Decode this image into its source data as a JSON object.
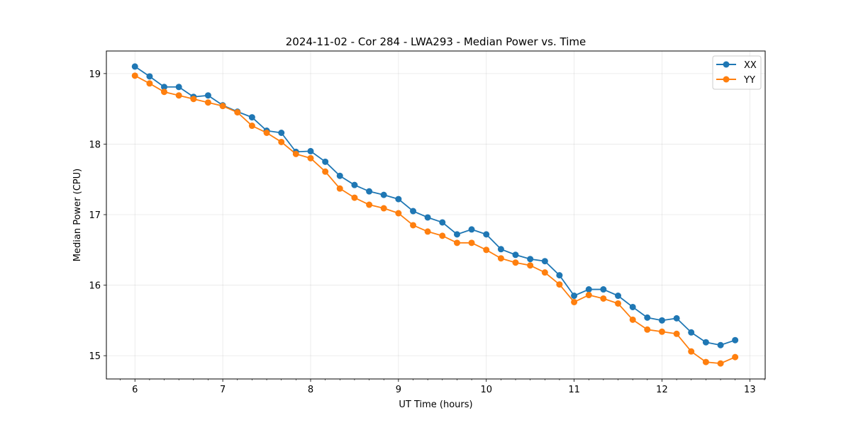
{
  "chart_data": {
    "type": "line",
    "title": "2024-11-02 - Cor 284 - LWA293 - Median Power vs. Time",
    "xlabel": "UT Time (hours)",
    "ylabel": "Median Power (CPU)",
    "xlim": [
      5.675,
      13.175
    ],
    "ylim": [
      14.67,
      19.32
    ],
    "x_ticks": [
      6,
      7,
      8,
      9,
      10,
      11,
      12,
      13
    ],
    "y_ticks": [
      15,
      16,
      17,
      18,
      19
    ],
    "grid": true,
    "legend_position": "top-right",
    "x": [
      6.0,
      6.167,
      6.333,
      6.5,
      6.667,
      6.833,
      7.0,
      7.167,
      7.333,
      7.5,
      7.667,
      7.833,
      8.0,
      8.167,
      8.333,
      8.5,
      8.667,
      8.833,
      9.0,
      9.167,
      9.333,
      9.5,
      9.667,
      9.833,
      10.0,
      10.167,
      10.333,
      10.5,
      10.667,
      10.833,
      11.0,
      11.167,
      11.333,
      11.5,
      11.667,
      11.833,
      12.0,
      12.167,
      12.333,
      12.5,
      12.667,
      12.833
    ],
    "series": [
      {
        "name": "XX",
        "color": "#1f77b4",
        "values": [
          19.1,
          18.96,
          18.81,
          18.81,
          18.67,
          18.69,
          18.55,
          18.46,
          18.38,
          18.19,
          18.16,
          17.89,
          17.9,
          17.75,
          17.55,
          17.42,
          17.33,
          17.28,
          17.22,
          17.05,
          16.96,
          16.89,
          16.72,
          16.79,
          16.72,
          16.51,
          16.43,
          16.37,
          16.34,
          16.14,
          15.85,
          15.94,
          15.94,
          15.85,
          15.69,
          15.54,
          15.5,
          15.53,
          15.33,
          15.19,
          15.15,
          15.22
        ]
      },
      {
        "name": "YY",
        "color": "#ff7f0e",
        "values": [
          18.97,
          18.86,
          18.74,
          18.69,
          18.64,
          18.59,
          18.54,
          18.45,
          18.26,
          18.16,
          18.03,
          17.86,
          17.8,
          17.61,
          17.37,
          17.24,
          17.14,
          17.09,
          17.02,
          16.85,
          16.76,
          16.7,
          16.6,
          16.6,
          16.5,
          16.38,
          16.32,
          16.28,
          16.18,
          16.01,
          15.76,
          15.86,
          15.81,
          15.74,
          15.51,
          15.37,
          15.34,
          15.31,
          15.06,
          14.91,
          14.89,
          14.98
        ]
      }
    ]
  }
}
